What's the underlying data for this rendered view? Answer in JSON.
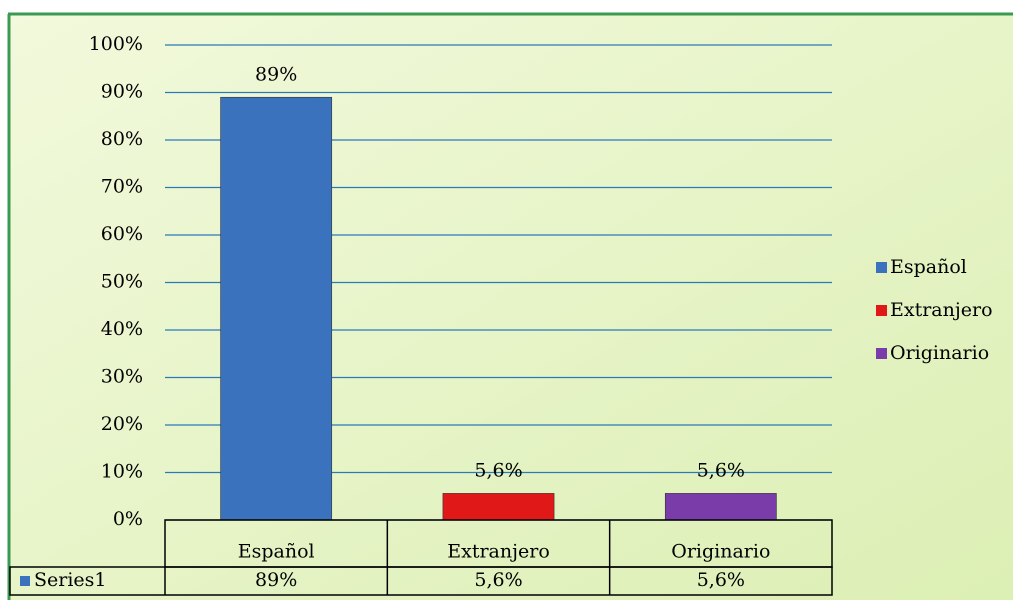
{
  "chart_data": {
    "type": "bar",
    "categories": [
      "Español",
      "Extranjero",
      "Originario"
    ],
    "series": [
      {
        "name": "Series1",
        "values": [
          89,
          5.6,
          5.6
        ],
        "value_labels": [
          "89%",
          "5,6%",
          "5,6%"
        ]
      }
    ],
    "colors": [
      "#3b72bd",
      "#e01818",
      "#7a3ca8"
    ],
    "ylim": [
      0,
      100
    ],
    "yticks": [
      {
        "value": 0,
        "label": "0%"
      },
      {
        "value": 10,
        "label": "10%"
      },
      {
        "value": 20,
        "label": "20%"
      },
      {
        "value": 30,
        "label": "30%"
      },
      {
        "value": 40,
        "label": "40%"
      },
      {
        "value": 50,
        "label": "50%"
      },
      {
        "value": 60,
        "label": "60%"
      },
      {
        "value": 70,
        "label": "70%"
      },
      {
        "value": 80,
        "label": "80%"
      },
      {
        "value": 90,
        "label": "90%"
      },
      {
        "value": 100,
        "label": "100%"
      }
    ],
    "grid": true,
    "legend": "right",
    "data_table": true
  }
}
